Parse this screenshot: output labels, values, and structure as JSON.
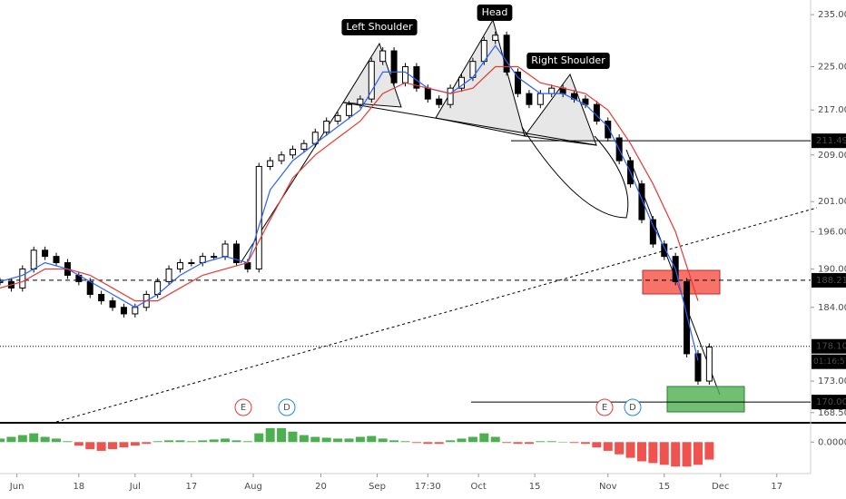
{
  "chart_data": [
    {
      "type": "candlestick",
      "log_scale": true,
      "xlim": [
        0,
        144
      ],
      "ylim": [
        167.2,
        237.9
      ],
      "xticks": [
        {
          "value": 3,
          "label": "Jun"
        },
        {
          "value": 14,
          "label": "18"
        },
        {
          "value": 24,
          "label": "Jul"
        },
        {
          "value": 34,
          "label": "17"
        },
        {
          "value": 45,
          "label": "Aug"
        },
        {
          "value": 57,
          "label": "20"
        },
        {
          "value": 67,
          "label": "Sep"
        },
        {
          "value": 76,
          "label": "17:30"
        },
        {
          "value": 85,
          "label": "Oct"
        },
        {
          "value": 95,
          "label": "15"
        },
        {
          "value": 108,
          "label": "Nov"
        },
        {
          "value": 118,
          "label": "15"
        },
        {
          "value": 128,
          "label": "Dec"
        },
        {
          "value": 138,
          "label": "17"
        }
      ],
      "yticks": [
        {
          "value": 235,
          "label": "235.00"
        },
        {
          "value": 225,
          "label": "225.00"
        },
        {
          "value": 217,
          "label": "217.00"
        },
        {
          "value": 209,
          "label": "209.00"
        },
        {
          "value": 201,
          "label": "201.00"
        },
        {
          "value": 196,
          "label": "196.00"
        },
        {
          "value": 190,
          "label": "190.00"
        },
        {
          "value": 184,
          "label": "184.00"
        },
        {
          "value": 173,
          "label": "173.00"
        },
        {
          "value": 168.5,
          "label": "168.50"
        }
      ],
      "price_labels": [
        {
          "value": 211.49,
          "label": "211.49"
        },
        {
          "value": 188.21,
          "label": "188.21"
        },
        {
          "value": 178.1,
          "label": "178.10"
        },
        {
          "value": 170,
          "label": "170.00"
        }
      ],
      "countdown": "01:16:57",
      "annotations": [
        "Left Shoulder",
        "Head",
        "Right Shoulder"
      ],
      "events": [
        {
          "label": "E",
          "color": "#e53935"
        },
        {
          "label": "D",
          "color": "#1e88e5"
        },
        {
          "label": "E",
          "color": "#e53935"
        },
        {
          "label": "D",
          "color": "#1e88e5"
        }
      ],
      "series": [
        {
          "style": "candles",
          "color": "#000000",
          "x": [
            0,
            2,
            4,
            6,
            8,
            10,
            12,
            14,
            16,
            18,
            20,
            22,
            24,
            26,
            28,
            30,
            32,
            34,
            36,
            38,
            40,
            42,
            44,
            46,
            48,
            50,
            52,
            54,
            56,
            58,
            60,
            62,
            64,
            66,
            68,
            70,
            72,
            74,
            76,
            78,
            80,
            82,
            84,
            86,
            88,
            90,
            92,
            94,
            96,
            98,
            100,
            102,
            104,
            106,
            108,
            110,
            112,
            114,
            116,
            118,
            120,
            122,
            124,
            126
          ],
          "values": [
            188,
            187,
            190,
            193,
            192,
            191,
            189,
            188,
            186,
            185,
            184,
            183,
            184,
            186,
            188,
            190,
            191,
            191,
            192,
            192,
            194,
            191,
            190,
            207,
            208,
            209,
            210,
            211,
            213,
            215,
            216,
            218,
            219,
            226,
            228,
            222,
            225,
            221,
            219,
            218,
            221,
            223,
            226,
            230,
            231,
            224,
            220,
            218,
            220,
            221,
            220,
            219,
            218,
            215,
            212,
            208,
            204,
            198,
            194,
            192,
            188,
            177,
            173,
            178
          ]
        },
        {
          "style": "line",
          "color": "#2962ff",
          "x": [
            0,
            4,
            8,
            12,
            16,
            20,
            24,
            28,
            32,
            36,
            40,
            44,
            48,
            52,
            56,
            60,
            64,
            68,
            72,
            76,
            80,
            84,
            88,
            92,
            96,
            100,
            104,
            108,
            112,
            116,
            120,
            124
          ],
          "values": [
            188,
            189,
            191,
            190,
            188,
            186,
            184,
            186,
            189,
            191,
            192,
            191,
            203,
            208,
            211,
            214,
            217,
            224,
            224,
            221,
            220,
            223,
            229,
            223,
            220,
            220,
            218,
            214,
            206,
            197,
            190,
            176
          ]
        },
        {
          "style": "line",
          "color": "#e53935",
          "x": [
            0,
            4,
            8,
            12,
            16,
            20,
            24,
            28,
            32,
            36,
            40,
            44,
            48,
            52,
            56,
            60,
            64,
            68,
            72,
            76,
            80,
            84,
            88,
            92,
            96,
            100,
            104,
            108,
            112,
            116,
            120,
            124
          ],
          "values": [
            187,
            188,
            190,
            190,
            189,
            187,
            185,
            185,
            187,
            189,
            190,
            191,
            198,
            205,
            209,
            212,
            215,
            220,
            222,
            221,
            220,
            221,
            225,
            225,
            222,
            221,
            220,
            217,
            211,
            204,
            196,
            185
          ]
        }
      ]
    },
    {
      "type": "bar",
      "xlim": [
        0,
        144
      ],
      "ylim": [
        -1.75,
        1
      ],
      "yticks": [
        {
          "value": 0,
          "label": "0.0000"
        }
      ],
      "up_color": "#4caf50",
      "down_color": "#ef5350",
      "x": [
        0,
        2,
        4,
        6,
        8,
        10,
        12,
        14,
        16,
        18,
        20,
        22,
        24,
        26,
        28,
        30,
        32,
        34,
        36,
        38,
        40,
        42,
        44,
        46,
        48,
        50,
        52,
        54,
        56,
        58,
        60,
        62,
        64,
        66,
        68,
        70,
        72,
        74,
        76,
        78,
        80,
        82,
        84,
        86,
        88,
        90,
        92,
        94,
        96,
        98,
        100,
        102,
        104,
        106,
        108,
        110,
        112,
        114,
        116,
        118,
        120,
        122,
        124,
        126
      ],
      "values": [
        0.2,
        0.3,
        0.4,
        0.5,
        0.3,
        0.2,
        0.05,
        -0.2,
        -0.4,
        -0.5,
        -0.4,
        -0.3,
        -0.2,
        -0.1,
        0.05,
        0.1,
        0.1,
        0.05,
        0.1,
        0.15,
        0.2,
        0.1,
        0.05,
        0.5,
        0.8,
        0.8,
        0.6,
        0.4,
        0.3,
        0.25,
        0.2,
        0.2,
        0.3,
        0.35,
        0.2,
        0.1,
        0.05,
        -0.05,
        -0.1,
        -0.1,
        0.1,
        0.2,
        0.3,
        0.5,
        0.3,
        -0.05,
        -0.1,
        -0.1,
        0.05,
        0.05,
        0,
        -0.05,
        -0.1,
        -0.3,
        -0.5,
        -0.7,
        -0.9,
        -1.1,
        -1.2,
        -1.3,
        -1.4,
        -1.4,
        -1.3,
        -1
      ]
    }
  ]
}
